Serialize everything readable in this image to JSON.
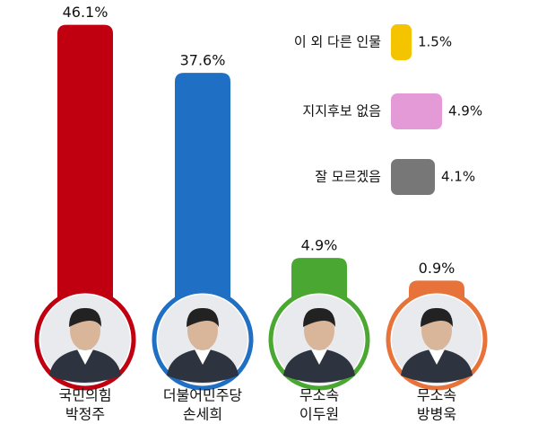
{
  "chart_data": [
    {
      "type": "bar",
      "categories": [
        [
          "국민의힘",
          "박정주"
        ],
        [
          "더불어민주당",
          "손세희"
        ],
        [
          "무소속",
          "이두원"
        ],
        [
          "무소속",
          "방병욱"
        ]
      ],
      "values": [
        46.1,
        37.6,
        4.9,
        0.9
      ],
      "value_labels": [
        "46.1%",
        "37.6%",
        "4.9%",
        "0.9%"
      ],
      "colors": [
        "#c00010",
        "#1f6fc4",
        "#4aa832",
        "#e8733a"
      ]
    },
    {
      "type": "hbar",
      "categories": [
        "이 외 다른 인물",
        "지지후보 없음",
        "잘 모르겠음"
      ],
      "values": [
        1.5,
        4.9,
        4.1
      ],
      "value_labels": [
        "1.5%",
        "4.9%",
        "4.1%"
      ],
      "colors": [
        "#f5c400",
        "#e59ad8",
        "#777777"
      ]
    }
  ]
}
